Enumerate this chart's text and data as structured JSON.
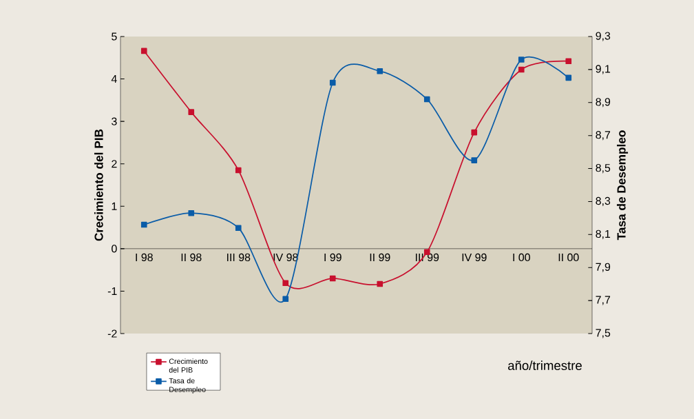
{
  "chart_data": {
    "type": "line",
    "categories": [
      "I 98",
      "II 98",
      "III 98",
      "IV 98",
      "I 99",
      "II 99",
      "III 99",
      "IV 99",
      "I 00",
      "II 00"
    ],
    "series": [
      {
        "name": "Crecimiento del PIB",
        "color": "#c8102e",
        "values": [
          4.66,
          3.22,
          1.85,
          -0.81,
          -0.7,
          -0.83,
          -0.08,
          2.74,
          4.22,
          4.42
        ]
      },
      {
        "name": "Tasa de Desempleo",
        "color": "#0a5ca8",
        "axis": "y2",
        "values": [
          8.16,
          8.23,
          8.14,
          7.71,
          9.02,
          9.09,
          8.92,
          8.55,
          9.16,
          9.05
        ]
      }
    ],
    "xlabel": "año/trimestre",
    "ylabel": "Crecimiento del PIB",
    "y2label": "Tasa de Desempleo",
    "ylim": [
      -2,
      5
    ],
    "yticks": [
      -2,
      -1,
      0,
      1,
      2,
      3,
      4,
      5
    ],
    "y2lim": [
      7.5,
      9.3
    ],
    "y2ticks": [
      {
        "value": 7.5,
        "label": "7,5"
      },
      {
        "value": 7.7,
        "label": "7,7"
      },
      {
        "value": 7.9,
        "label": "7,9"
      },
      {
        "value": 8.1,
        "label": "8,1"
      },
      {
        "value": 8.3,
        "label": "8,3"
      },
      {
        "value": 8.5,
        "label": "8,5"
      },
      {
        "value": 8.7,
        "label": "8,7"
      },
      {
        "value": 8.9,
        "label": "8,9"
      },
      {
        "value": 9.1,
        "label": "9,1"
      },
      {
        "value": 9.3,
        "label": "9,3"
      }
    ],
    "grid": false,
    "legend": "bottom left",
    "marker": "square",
    "line_style": "solid"
  }
}
